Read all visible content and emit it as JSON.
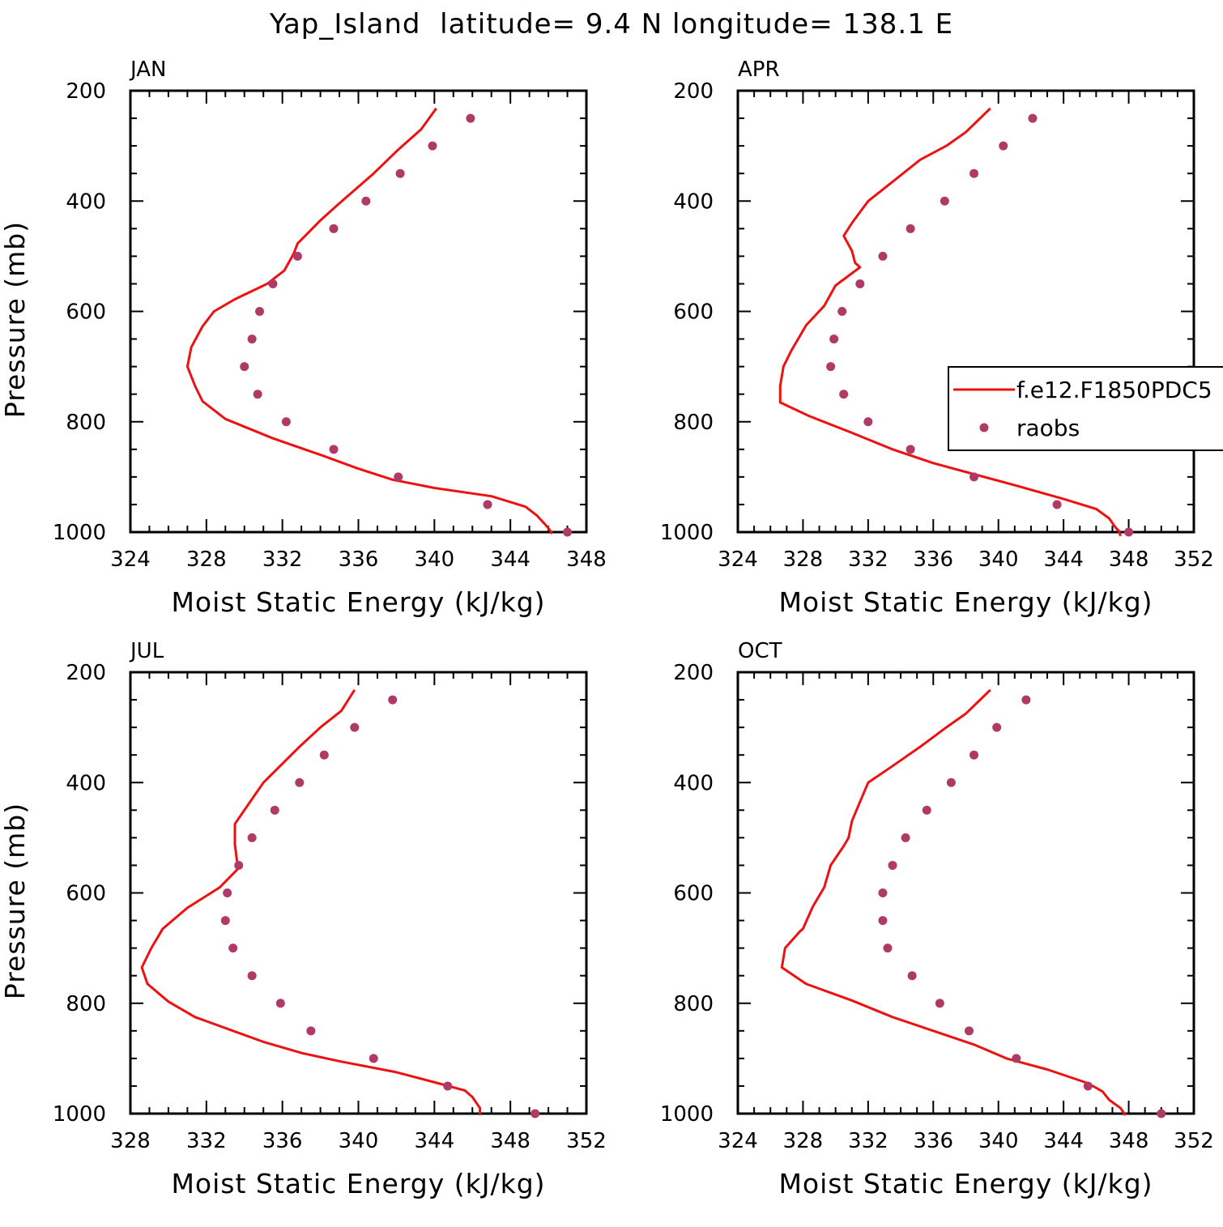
{
  "figure": {
    "title": "Yap_Island  latitude= 9.4 N longitude= 138.1 E",
    "line_color": "#ee1111",
    "marker_color": "#b03a66"
  },
  "chart_data": [
    {
      "type": "line",
      "panel": "JAN",
      "xlabel": "Moist Static Energy (kJ/kg)",
      "ylabel": "Pressure (mb)",
      "xlim": [
        324,
        348
      ],
      "ylim": [
        1000,
        200
      ],
      "xticks": [
        324,
        328,
        332,
        336,
        340,
        344,
        348
      ],
      "yticks": [
        200,
        400,
        600,
        800,
        1000
      ],
      "legend": false,
      "model": {
        "x": [
          340.1,
          339.3,
          338.0,
          336.8,
          335.5,
          334.8,
          334.0,
          333.2,
          332.8,
          332.6,
          332.1,
          331.2,
          329.5,
          328.4,
          327.8,
          327.2,
          327.0,
          327.4,
          327.8,
          329.0,
          331.5,
          334.0,
          336.0,
          337.8,
          340.0,
          343.0,
          344.8,
          345.4,
          345.8,
          346.0,
          346.2
        ],
        "y": [
          232,
          270,
          310,
          350,
          389,
          410,
          435,
          463,
          477,
          495,
          526,
          550,
          578,
          600,
          627,
          665,
          700,
          735,
          763,
          795,
          830,
          860,
          885,
          905,
          920,
          935,
          954,
          970,
          985,
          993,
          1003
        ]
      },
      "raobs": {
        "x": [
          341.9,
          339.9,
          338.2,
          336.4,
          334.7,
          332.8,
          331.5,
          330.8,
          330.4,
          330.0,
          330.7,
          332.2,
          334.7,
          338.1,
          342.8,
          347.0
        ],
        "y": [
          250,
          300,
          350,
          400,
          450,
          500,
          550,
          600,
          650,
          700,
          750,
          800,
          850,
          900,
          950,
          1000
        ]
      }
    },
    {
      "type": "line",
      "panel": "APR",
      "xlabel": "Moist Static Energy (kJ/kg)",
      "ylabel": "",
      "xlim": [
        324,
        352
      ],
      "ylim": [
        1000,
        200
      ],
      "xticks": [
        324,
        328,
        332,
        336,
        340,
        344,
        348,
        352
      ],
      "yticks": [
        200,
        400,
        600,
        800,
        1000
      ],
      "legend": true,
      "legend_position": "right",
      "legend_entries": [
        "f.e12.F1850PDC5",
        "raobs"
      ],
      "model": {
        "x": [
          339.5,
          338.7,
          338.0,
          336.8,
          335.2,
          333.5,
          332.0,
          331.5,
          331.0,
          330.5,
          331.0,
          331.2,
          331.5,
          330.0,
          329.3,
          328.2,
          327.3,
          326.8,
          326.6,
          326.6,
          328.4,
          331.0,
          333.5,
          336.0,
          338.5,
          341.0,
          344.0,
          346.0,
          346.8,
          347.2,
          347.4,
          347.5
        ],
        "y": [
          232,
          255,
          275,
          300,
          325,
          365,
          400,
          420,
          440,
          463,
          490,
          512,
          520,
          553,
          590,
          625,
          670,
          700,
          735,
          765,
          790,
          820,
          850,
          875,
          895,
          915,
          940,
          958,
          975,
          992,
          998,
          1007
        ]
      },
      "raobs": {
        "x": [
          342.1,
          340.3,
          338.5,
          336.7,
          334.6,
          332.9,
          331.5,
          330.4,
          329.9,
          329.7,
          330.5,
          332.0,
          334.6,
          338.5,
          343.6,
          348.0
        ],
        "y": [
          250,
          300,
          350,
          400,
          450,
          500,
          550,
          600,
          650,
          700,
          750,
          800,
          850,
          900,
          950,
          1000
        ]
      }
    },
    {
      "type": "line",
      "panel": "JUL",
      "xlabel": "Moist Static Energy (kJ/kg)",
      "ylabel": "Pressure (mb)",
      "xlim": [
        328,
        352
      ],
      "ylim": [
        1000,
        200
      ],
      "xticks": [
        328,
        332,
        336,
        340,
        344,
        348,
        352
      ],
      "yticks": [
        200,
        400,
        600,
        800,
        1000
      ],
      "legend": false,
      "model": {
        "x": [
          339.8,
          339.1,
          338.0,
          336.9,
          335.0,
          334.2,
          333.5,
          333.5,
          333.6,
          333.7,
          332.7,
          331.0,
          329.7,
          329.1,
          328.6,
          328.9,
          330.0,
          331.4,
          333.4,
          335.0,
          337.0,
          339.0,
          342.0,
          344.2,
          345.6,
          346.0,
          346.4,
          346.4
        ],
        "y": [
          232,
          270,
          300,
          335,
          400,
          440,
          475,
          512,
          540,
          555,
          590,
          627,
          665,
          700,
          735,
          765,
          797,
          825,
          850,
          870,
          890,
          905,
          925,
          945,
          958,
          970,
          990,
          1003
        ]
      },
      "raobs": {
        "x": [
          341.8,
          339.8,
          338.2,
          336.9,
          335.6,
          334.4,
          333.7,
          333.1,
          333.0,
          333.4,
          334.4,
          335.9,
          337.5,
          340.8,
          344.7,
          349.3
        ],
        "y": [
          250,
          300,
          350,
          400,
          450,
          500,
          550,
          600,
          650,
          700,
          750,
          800,
          850,
          900,
          950,
          1000
        ]
      }
    },
    {
      "type": "line",
      "panel": "OCT",
      "xlabel": "Moist Static Energy (kJ/kg)",
      "ylabel": "",
      "xlim": [
        324,
        352
      ],
      "ylim": [
        1000,
        200
      ],
      "xticks": [
        324,
        328,
        332,
        336,
        340,
        344,
        348,
        352
      ],
      "yticks": [
        200,
        400,
        600,
        800,
        1000
      ],
      "legend": false,
      "model": {
        "x": [
          339.5,
          338.7,
          338.0,
          336.8,
          335.2,
          333.5,
          332.0,
          331.5,
          331.0,
          330.8,
          330.5,
          329.7,
          329.3,
          328.6,
          328.0,
          327.8,
          326.9,
          326.7,
          328.2,
          331.0,
          333.5,
          336.0,
          338.5,
          340.5,
          343.0,
          345.5,
          346.4,
          346.8,
          347.5,
          347.8
        ],
        "y": [
          232,
          255,
          275,
          300,
          335,
          370,
          400,
          435,
          470,
          500,
          515,
          550,
          590,
          625,
          665,
          670,
          700,
          735,
          765,
          795,
          825,
          850,
          875,
          900,
          920,
          945,
          960,
          975,
          990,
          1003
        ]
      },
      "raobs": {
        "x": [
          341.7,
          339.9,
          338.5,
          337.1,
          335.6,
          334.3,
          333.5,
          332.9,
          332.9,
          333.2,
          334.7,
          336.4,
          338.2,
          341.1,
          345.5,
          350.0
        ],
        "y": [
          250,
          300,
          350,
          400,
          450,
          500,
          550,
          600,
          650,
          700,
          750,
          800,
          850,
          900,
          950,
          1000
        ]
      }
    }
  ]
}
